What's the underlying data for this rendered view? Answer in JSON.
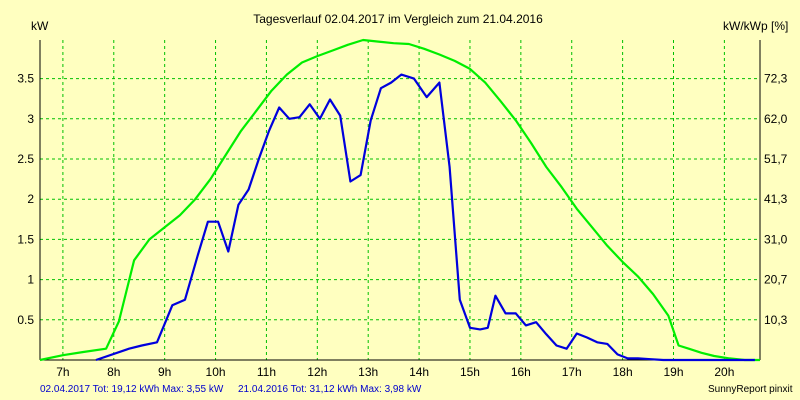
{
  "chart_data": {
    "type": "line",
    "title": "Tagesverlauf 02.04.2017 im Vergleich zum 21.04.2016",
    "ylabel_left": "kW",
    "ylabel_right": "kW/kWp [%]",
    "x_unit": "h",
    "xlim": [
      6.55,
      20.7
    ],
    "ylim": [
      0,
      3.98
    ],
    "x_ticks": [
      7,
      8,
      9,
      10,
      11,
      12,
      13,
      14,
      15,
      16,
      17,
      18,
      19,
      20
    ],
    "x_tick_labels": [
      "7h",
      "8h",
      "9h",
      "10h",
      "11h",
      "12h",
      "13h",
      "14h",
      "15h",
      "16h",
      "17h",
      "18h",
      "19h",
      "20h"
    ],
    "y_ticks_left": [
      0.5,
      1,
      1.5,
      2,
      2.5,
      3,
      3.5
    ],
    "y_tick_labels_left": [
      "0.5",
      "1",
      "1.5",
      "2",
      "2.5",
      "3",
      "3.5"
    ],
    "y_tick_labels_right": [
      "10,3",
      "20,7",
      "31,0",
      "41,3",
      "51,7",
      "62,0",
      "72,3"
    ],
    "grid": true,
    "series": [
      {
        "name": "02.04.2017",
        "color": "#0000dd",
        "x": [
          7.65,
          8.3,
          8.55,
          8.85,
          9.0,
          9.15,
          9.4,
          9.65,
          9.85,
          10.05,
          10.25,
          10.45,
          10.65,
          10.85,
          11.05,
          11.25,
          11.45,
          11.65,
          11.85,
          12.05,
          12.25,
          12.45,
          12.65,
          12.85,
          13.05,
          13.25,
          13.45,
          13.65,
          13.9,
          14.15,
          14.4,
          14.6,
          14.8,
          15.0,
          15.2,
          15.35,
          15.5,
          15.7,
          15.9,
          16.1,
          16.3,
          16.5,
          16.7,
          16.9,
          17.1,
          17.3,
          17.5,
          17.7,
          17.9,
          18.1,
          18.3,
          18.55,
          18.8,
          19.05,
          19.3,
          19.55,
          19.8,
          20.05,
          20.3,
          20.6
        ],
        "y": [
          0.0,
          0.14,
          0.18,
          0.22,
          0.45,
          0.68,
          0.75,
          1.3,
          1.72,
          1.72,
          1.35,
          1.93,
          2.12,
          2.5,
          2.85,
          3.14,
          3.0,
          3.02,
          3.18,
          3.0,
          3.24,
          3.04,
          2.22,
          2.3,
          2.98,
          3.38,
          3.45,
          3.55,
          3.5,
          3.27,
          3.45,
          2.4,
          0.75,
          0.4,
          0.38,
          0.4,
          0.8,
          0.58,
          0.58,
          0.43,
          0.47,
          0.32,
          0.18,
          0.14,
          0.33,
          0.28,
          0.22,
          0.2,
          0.07,
          0.02,
          0.02,
          0.01,
          0.0,
          0.0,
          0.0,
          0.0,
          0.0,
          0.0,
          0.0,
          0.0
        ]
      },
      {
        "name": "21.04.2016",
        "color": "#00ee00",
        "x": [
          6.55,
          7.0,
          7.4,
          7.85,
          8.1,
          8.4,
          8.7,
          9.0,
          9.3,
          9.6,
          9.9,
          10.2,
          10.5,
          10.8,
          11.1,
          11.4,
          11.7,
          12.0,
          12.3,
          12.6,
          12.9,
          13.2,
          13.5,
          13.8,
          14.1,
          14.4,
          14.7,
          15.0,
          15.3,
          15.6,
          15.9,
          16.2,
          16.5,
          16.8,
          17.1,
          17.4,
          17.7,
          18.0,
          18.3,
          18.6,
          18.9,
          19.1,
          19.3,
          19.55,
          19.8,
          20.1,
          20.4,
          20.7
        ],
        "y": [
          0.0,
          0.06,
          0.1,
          0.14,
          0.48,
          1.24,
          1.5,
          1.65,
          1.8,
          2.0,
          2.25,
          2.55,
          2.85,
          3.1,
          3.35,
          3.55,
          3.7,
          3.78,
          3.85,
          3.92,
          3.98,
          3.96,
          3.94,
          3.93,
          3.87,
          3.8,
          3.72,
          3.62,
          3.45,
          3.22,
          2.98,
          2.7,
          2.4,
          2.15,
          1.88,
          1.65,
          1.42,
          1.22,
          1.04,
          0.82,
          0.55,
          0.18,
          0.14,
          0.09,
          0.05,
          0.02,
          0.0,
          0.0
        ]
      }
    ]
  },
  "footer": {
    "series1_label": "02.04.2017 Tot: 19,12 kWh Max: 3,55 kW",
    "series2_label": "21.04.2016 Tot: 31,12 kWh Max: 3,98 kW",
    "credit": "SunnyReport pinxit"
  }
}
